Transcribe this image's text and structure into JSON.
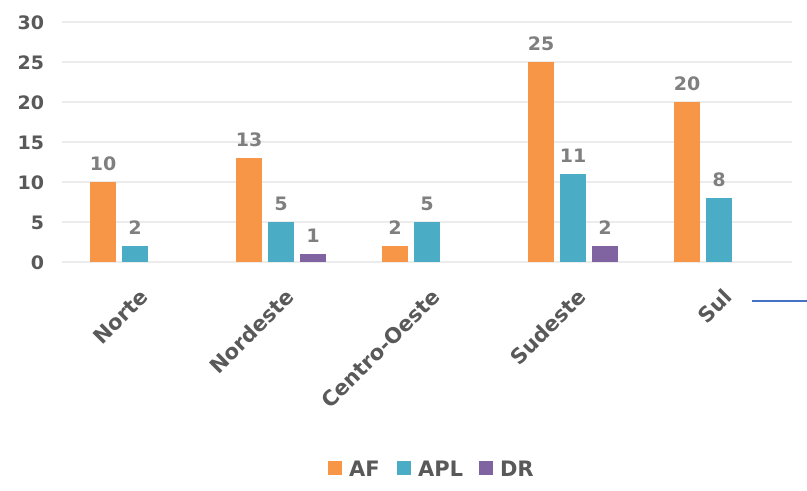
{
  "chart_data": {
    "type": "bar",
    "categories": [
      "Norte",
      "Nordeste",
      "Centro-Oeste",
      "Sudeste",
      "Sul"
    ],
    "series": [
      {
        "name": "AF",
        "color": "#f79646",
        "values": [
          10,
          13,
          2,
          25,
          20
        ]
      },
      {
        "name": "APL",
        "color": "#4bacc6",
        "values": [
          2,
          5,
          5,
          11,
          8
        ]
      },
      {
        "name": "DR",
        "color": "#8064a2",
        "values": [
          null,
          1,
          null,
          2,
          null
        ]
      }
    ],
    "yticks": [
      0,
      5,
      10,
      15,
      20,
      25,
      30
    ],
    "ylim": [
      0,
      30
    ],
    "grid": true,
    "legend_position": "bottom",
    "title": "",
    "xlabel": "",
    "ylabel": "",
    "accent_line_color": "#4472c4"
  }
}
